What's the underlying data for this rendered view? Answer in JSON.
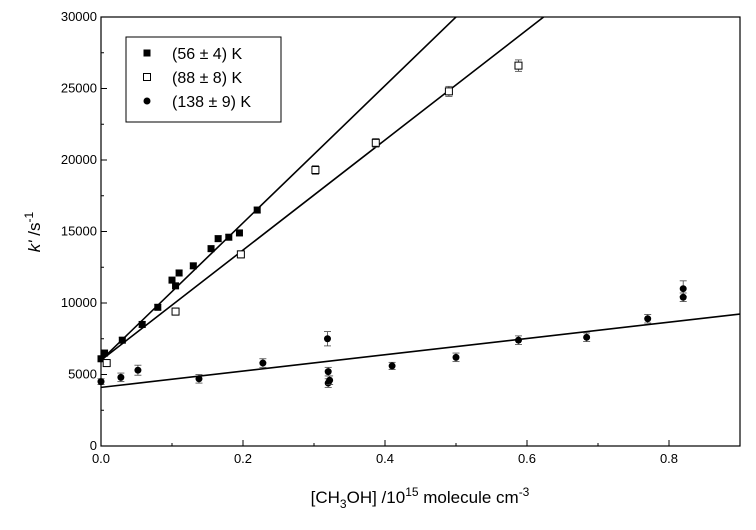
{
  "chart_data": {
    "type": "scatter",
    "xlabel": "[CH₃OH] /10¹⁵ molecule cm⁻³",
    "xlabel_parts": {
      "pre": "[CH",
      "sub": "3",
      "mid": "OH] /10",
      "sup": "15",
      "post": " molecule cm",
      "sup2": "-3"
    },
    "ylabel": "k' /s⁻¹",
    "ylabel_parts": {
      "main": "k'",
      "unit": " /s",
      "sup": "-1"
    },
    "xlim": [
      0,
      0.9
    ],
    "ylim": [
      0,
      30000
    ],
    "xticks": [
      0.0,
      0.2,
      0.4,
      0.6,
      0.8
    ],
    "xtick_labels": [
      "0.0",
      "0.2",
      "0.4",
      "0.6",
      "0.8"
    ],
    "yticks": [
      0,
      5000,
      10000,
      15000,
      20000,
      25000,
      30000
    ],
    "ytick_labels": [
      "0",
      "5000",
      "10000",
      "15000",
      "20000",
      "25000",
      "30000"
    ],
    "legend_position": "top-left",
    "series": [
      {
        "name": "(56 ± 4) K",
        "marker": "filled-square",
        "color": "#000000",
        "points": [
          [
            0.0,
            6100,
            200
          ],
          [
            0.005,
            6500,
            200
          ],
          [
            0.03,
            7400,
            200
          ],
          [
            0.058,
            8500,
            200
          ],
          [
            0.08,
            9700,
            200
          ],
          [
            0.1,
            11600,
            200
          ],
          [
            0.105,
            11200,
            200
          ],
          [
            0.11,
            12100,
            200
          ],
          [
            0.13,
            12600,
            200
          ],
          [
            0.155,
            13800,
            200
          ],
          [
            0.165,
            14500,
            200
          ],
          [
            0.18,
            14600,
            200
          ],
          [
            0.195,
            14900,
            200
          ],
          [
            0.22,
            16500,
            200
          ]
        ],
        "fit": {
          "intercept": 6000,
          "slope": 48000
        }
      },
      {
        "name": "(88 ± 8) K",
        "marker": "open-square",
        "color": "#000000",
        "points": [
          [
            0.008,
            5800,
            250
          ],
          [
            0.105,
            9400,
            250
          ],
          [
            0.197,
            13400,
            250
          ],
          [
            0.302,
            19300,
            300
          ],
          [
            0.387,
            21200,
            300
          ],
          [
            0.49,
            24800,
            350
          ],
          [
            0.588,
            26600,
            400
          ]
        ],
        "fit": {
          "intercept": 6000,
          "slope": 38500
        }
      },
      {
        "name": "(138 ± 9) K",
        "marker": "filled-circle",
        "color": "#000000",
        "points": [
          [
            0.0,
            4500,
            200
          ],
          [
            0.028,
            4800,
            300
          ],
          [
            0.052,
            5300,
            350
          ],
          [
            0.138,
            4700,
            300
          ],
          [
            0.228,
            5800,
            300
          ],
          [
            0.319,
            7500,
            500
          ],
          [
            0.32,
            5200,
            300
          ],
          [
            0.32,
            4400,
            300
          ],
          [
            0.322,
            4600,
            300
          ],
          [
            0.41,
            5600,
            250
          ],
          [
            0.5,
            6200,
            300
          ],
          [
            0.588,
            7400,
            300
          ],
          [
            0.684,
            7600,
            300
          ],
          [
            0.77,
            8900,
            300
          ],
          [
            0.82,
            11000,
            550
          ],
          [
            0.82,
            10400,
            300
          ]
        ],
        "fit": {
          "intercept": 4100,
          "slope": 5700
        }
      }
    ]
  }
}
